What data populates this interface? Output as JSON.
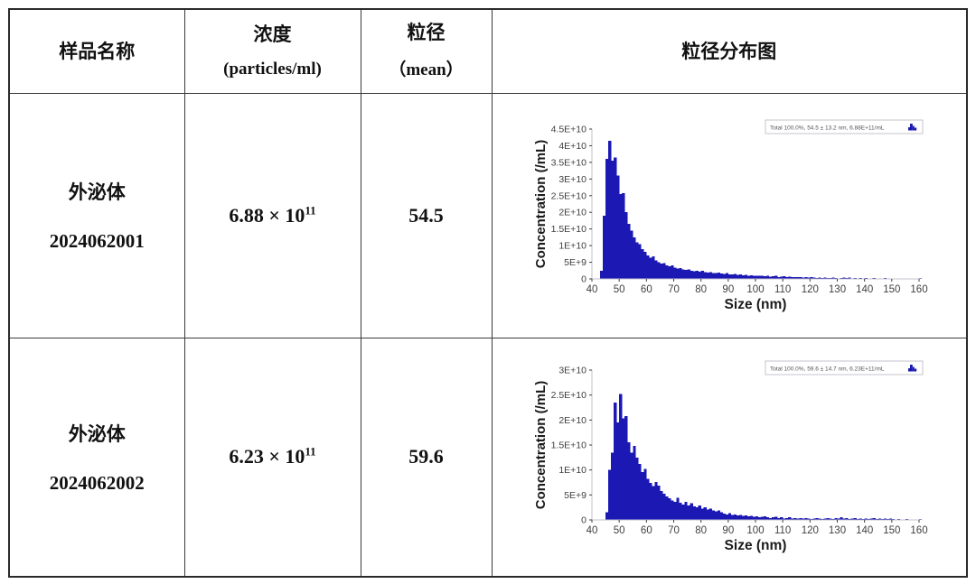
{
  "table": {
    "headers": {
      "sample": "样品名称",
      "conc_line1": "浓度",
      "conc_line2": "(particles/ml)",
      "size_line1": "粒径",
      "size_line2": "（mean）",
      "chart": "粒径分布图"
    },
    "rows": [
      {
        "name_line1": "外泌体",
        "name_line2": "2024062001",
        "concentration": {
          "base": "6.88 × 10",
          "exp": "11"
        },
        "mean_size": "54.5"
      },
      {
        "name_line1": "外泌体",
        "name_line2": "2024062002",
        "concentration": {
          "base": "6.23 × 10",
          "exp": "11"
        },
        "mean_size": "59.6"
      }
    ]
  },
  "colors": {
    "bar": "#1b18b4",
    "axis_line": "#c2c2cc",
    "tick_text": "#3f3f3f",
    "label_text": "#1a1a1a",
    "legend_border": "#c4c4cc",
    "legend_text": "#555555"
  },
  "chart_data": [
    {
      "type": "bar",
      "title": "",
      "xlabel": "Size (nm)",
      "ylabel": "Concentration (/mL)",
      "legend": "Total  100.0%,  54.5 ± 13.2 nm,  6.88E+11/mL",
      "legend_position": "top-right",
      "grid": false,
      "xlim": [
        40,
        160
      ],
      "x_tick_step": 10,
      "ylim": [
        0,
        45000000000
      ],
      "y_tick_values_e9": [
        0,
        5,
        10,
        15,
        20,
        25,
        30,
        35,
        40,
        45
      ],
      "y_tick_labels": [
        "0",
        "5E+9",
        "1E+10",
        "1.5E+10",
        "2E+10",
        "2.5E+10",
        "3E+10",
        "3.5E+10",
        "4E+10",
        "4.5E+10"
      ],
      "bin_start_nm": 43,
      "bin_width_nm": 1,
      "values_e9": [
        2.5,
        19,
        36,
        41.5,
        35.5,
        36.5,
        31,
        25.5,
        25.8,
        20,
        16.5,
        14.5,
        12.5,
        11,
        10.5,
        9,
        8.2,
        7,
        6.4,
        6.8,
        5.6,
        5,
        4.6,
        4.8,
        4.1,
        3.8,
        4,
        3.4,
        3.1,
        3.3,
        2.9,
        2.7,
        2.9,
        2.5,
        2.3,
        2.5,
        2.2,
        2.4,
        2,
        1.9,
        2.1,
        1.8,
        1.7,
        1.9,
        1.6,
        1.5,
        1.7,
        1.4,
        1.3,
        1.5,
        1.2,
        1.3,
        1.1,
        1.2,
        1,
        1.1,
        0.9,
        1,
        0.9,
        1,
        0.8,
        0.9,
        0.7,
        0.8,
        0.9,
        0.6,
        0.7,
        0.8,
        0.6,
        0.7,
        0.5,
        0.6,
        0.5,
        0.6,
        0.4,
        0.5,
        0.4,
        0.5,
        0.4,
        0.3,
        0.4,
        0.3,
        0.4,
        0.3,
        0.3,
        0.4,
        0.3,
        0.2,
        0.3,
        0.4,
        0.3,
        0.4,
        0.2,
        0.3,
        0.2,
        0.3,
        0.2,
        0.3,
        0.2,
        0.2,
        0.3,
        0.2,
        0.1,
        0.2,
        0.3,
        0.2,
        0.1,
        0.2,
        0.1,
        0.2,
        0.1,
        0.1,
        0.2,
        0.1,
        0.1,
        0.1,
        0.1,
        0.1
      ]
    },
    {
      "type": "bar",
      "title": "",
      "xlabel": "Size (nm)",
      "ylabel": "Concentration (/mL)",
      "legend": "Total  100.0%,  59.6 ± 14.7 nm,  6.23E+11/mL",
      "legend_position": "top-right",
      "grid": false,
      "xlim": [
        40,
        160
      ],
      "x_tick_step": 10,
      "ylim": [
        0,
        30000000000
      ],
      "y_tick_values_e9": [
        0,
        5,
        10,
        15,
        20,
        25,
        30
      ],
      "y_tick_labels": [
        "0",
        "5E+9",
        "1E+10",
        "1.5E+10",
        "2E+10",
        "2.5E+10",
        "3E+10"
      ],
      "bin_start_nm": 45,
      "bin_width_nm": 1,
      "values_e9": [
        1.5,
        10,
        13.5,
        23.5,
        19.5,
        25.2,
        20.3,
        20.8,
        15.5,
        13.5,
        14.8,
        12.5,
        11.2,
        9.6,
        10.2,
        8.2,
        7.4,
        6.8,
        7.6,
        6.9,
        5.8,
        5.2,
        4.7,
        4.3,
        3.9,
        3.6,
        4.4,
        3.4,
        3.1,
        3.6,
        2.9,
        3.3,
        2.7,
        2.5,
        2.9,
        2.3,
        2.5,
        2.1,
        2.3,
        1.9,
        1.7,
        1.9,
        1.5,
        1.3,
        1.1,
        1.4,
        1.0,
        1.1,
        0.9,
        1.0,
        0.8,
        0.9,
        0.7,
        0.8,
        0.6,
        0.7,
        0.5,
        0.6,
        0.7,
        0.5,
        0.4,
        0.5,
        0.6,
        0.4,
        0.5,
        0.3,
        0.4,
        0.5,
        0.3,
        0.4,
        0.3,
        0.4,
        0.3,
        0.4,
        0.3,
        0.2,
        0.3,
        0.4,
        0.3,
        0.2,
        0.3,
        0.4,
        0.3,
        0.2,
        0.4,
        0.3,
        0.5,
        0.3,
        0.4,
        0.2,
        0.3,
        0.4,
        0.2,
        0.3,
        0.2,
        0.3,
        0.2,
        0.3,
        0.4,
        0.2,
        0.3,
        0.2,
        0.3,
        0.2,
        0.3,
        0.2,
        0.1,
        0.2,
        0.1,
        0.1,
        0.2,
        0.1,
        0.1,
        0.1,
        0.1,
        0.1
      ]
    }
  ]
}
